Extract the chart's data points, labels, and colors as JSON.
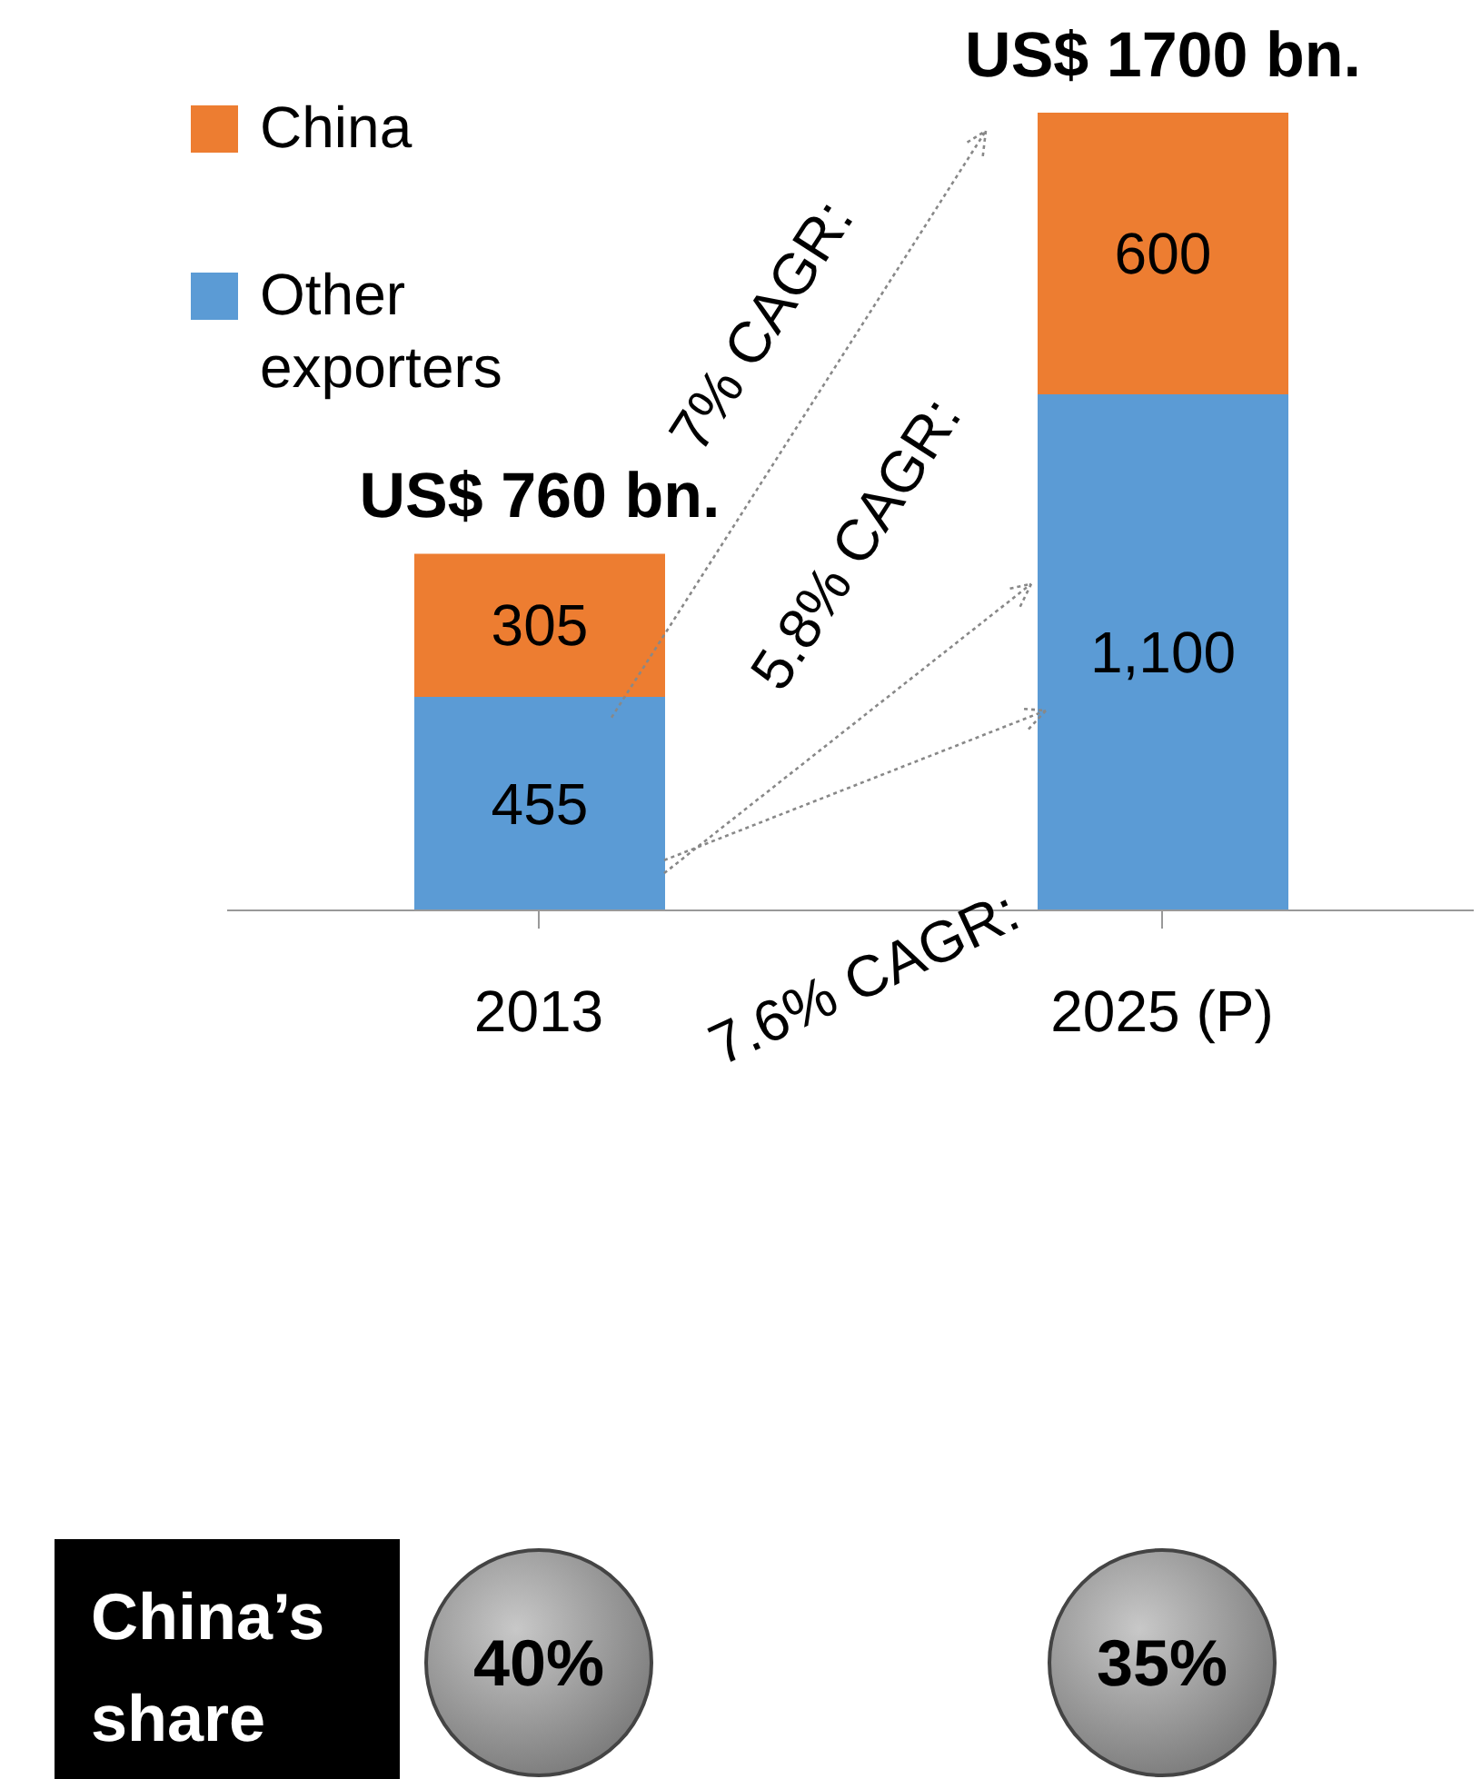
{
  "chart_data": {
    "type": "bar",
    "stacked": true,
    "categories": [
      "2013",
      "2025 (P)"
    ],
    "series": [
      {
        "name": "Other exporters",
        "color": "#5b9bd5",
        "values": [
          455,
          1100
        ],
        "value_labels": [
          "455",
          "1,100"
        ]
      },
      {
        "name": "China",
        "color": "#ed7d31",
        "values": [
          305,
          600
        ],
        "value_labels": [
          "305",
          "600"
        ]
      }
    ],
    "totals": [
      "US$ 760 bn.",
      "US$ 1700  bn."
    ],
    "legend": "top left",
    "grid": false,
    "annotations": [
      "7% CAGR:",
      "5.8% CAGR:",
      "7.6% CAGR:",
      "China’s share",
      "40%",
      "35%"
    ]
  }
}
